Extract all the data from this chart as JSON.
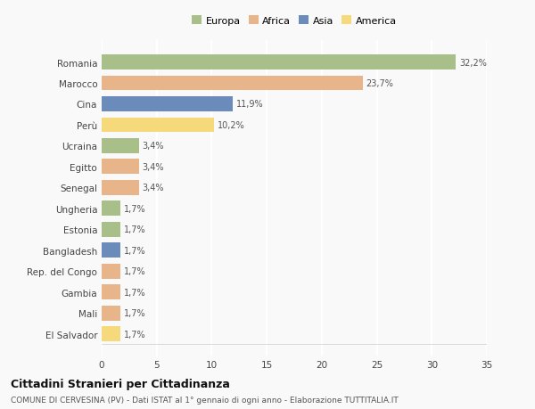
{
  "countries": [
    "Romania",
    "Marocco",
    "Cina",
    "Perù",
    "Ucraina",
    "Egitto",
    "Senegal",
    "Ungheria",
    "Estonia",
    "Bangladesh",
    "Rep. del Congo",
    "Gambia",
    "Mali",
    "El Salvador"
  ],
  "values": [
    32.2,
    23.7,
    11.9,
    10.2,
    3.4,
    3.4,
    3.4,
    1.7,
    1.7,
    1.7,
    1.7,
    1.7,
    1.7,
    1.7
  ],
  "labels": [
    "32,2%",
    "23,7%",
    "11,9%",
    "10,2%",
    "3,4%",
    "3,4%",
    "3,4%",
    "1,7%",
    "1,7%",
    "1,7%",
    "1,7%",
    "1,7%",
    "1,7%",
    "1,7%"
  ],
  "colors": [
    "#a8bf8a",
    "#e8b48a",
    "#6b8cba",
    "#f5d97a",
    "#a8bf8a",
    "#e8b48a",
    "#e8b48a",
    "#a8bf8a",
    "#a8bf8a",
    "#6b8cba",
    "#e8b48a",
    "#e8b48a",
    "#e8b48a",
    "#f5d97a"
  ],
  "legend_labels": [
    "Europa",
    "Africa",
    "Asia",
    "America"
  ],
  "legend_colors": [
    "#a8bf8a",
    "#e8b48a",
    "#6b8cba",
    "#f5d97a"
  ],
  "title": "Cittadini Stranieri per Cittadinanza",
  "subtitle": "COMUNE DI CERVESINA (PV) - Dati ISTAT al 1° gennaio di ogni anno - Elaborazione TUTTITALIA.IT",
  "xlim": [
    0,
    35
  ],
  "xticks": [
    0,
    5,
    10,
    15,
    20,
    25,
    30,
    35
  ],
  "background_color": "#f9f9f9",
  "grid_color": "#ffffff",
  "bar_height": 0.72
}
